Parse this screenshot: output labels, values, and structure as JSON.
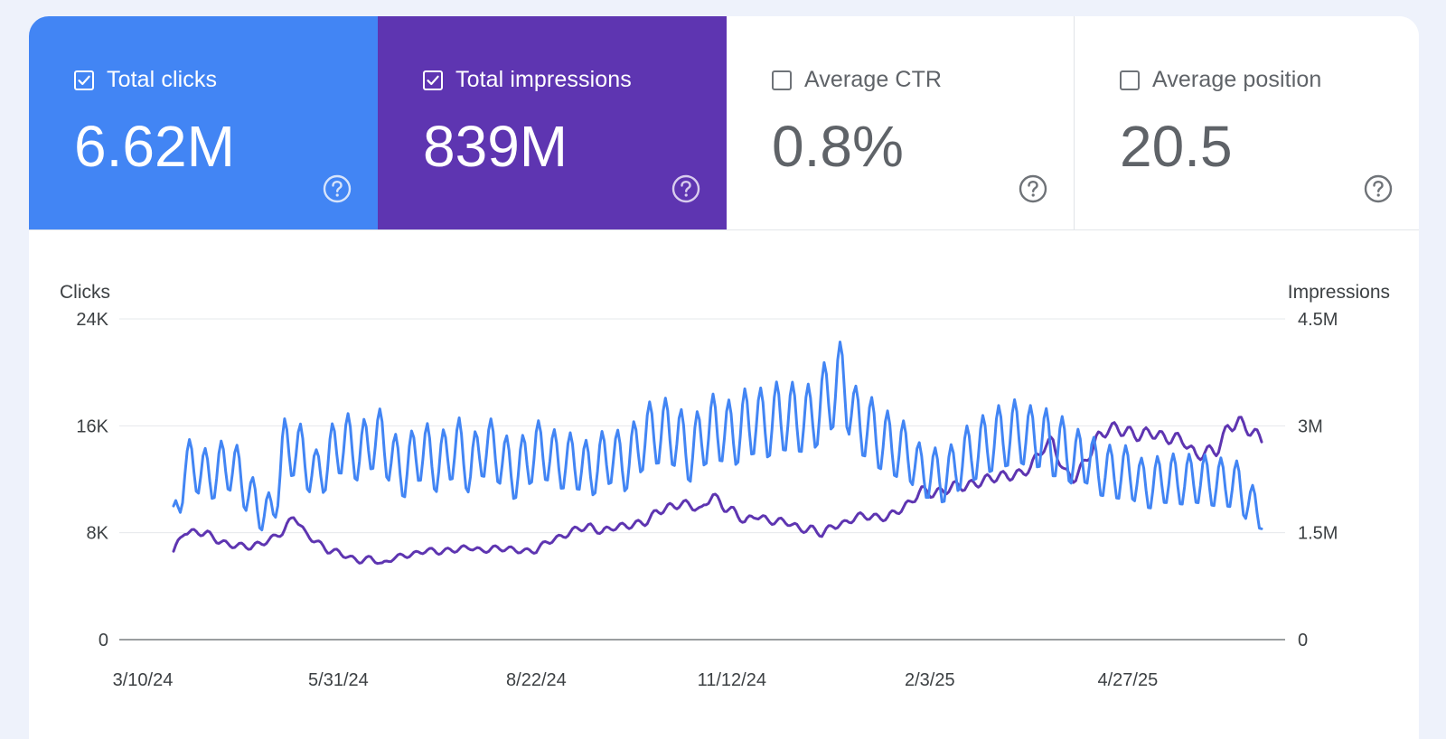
{
  "metrics": [
    {
      "label": "Total clicks",
      "value": "6.62M",
      "checked": true
    },
    {
      "label": "Total impressions",
      "value": "839M",
      "checked": true
    },
    {
      "label": "Average CTR",
      "value": "0.8%",
      "checked": false
    },
    {
      "label": "Average position",
      "value": "20.5",
      "checked": false
    }
  ],
  "colors": {
    "clicks": "#4285f4",
    "impressions": "#5e35b1"
  },
  "chart_data": {
    "type": "line",
    "title": "",
    "ylabel_left": "Clicks",
    "ylabel_right": "Impressions",
    "y_left_ticks": [
      "24K",
      "16K",
      "8K",
      "0"
    ],
    "y_right_ticks": [
      "4.5M",
      "3M",
      "1.5M",
      "0"
    ],
    "ylim_left": [
      0,
      24000
    ],
    "ylim_right": [
      0,
      4500000
    ],
    "x_tick_labels": [
      "3/10/24",
      "5/31/24",
      "8/22/24",
      "11/12/24",
      "2/3/25",
      "4/27/25"
    ],
    "x_range_days": [
      0,
      479
    ],
    "x_tick_days": [
      0,
      82,
      165,
      247,
      330,
      413
    ],
    "series": [
      {
        "name": "Clicks",
        "axis": "left",
        "values": [
          10000,
          14800,
          15200,
          14200,
          14600,
          15400,
          14300,
          12400,
          11200,
          10900,
          16500,
          16800,
          15600,
          14200,
          15500,
          17000,
          16900,
          16000,
          17500,
          17200,
          15600,
          14500,
          16200,
          16300,
          15000,
          16300,
          16600,
          14700,
          16700,
          16500,
          15700,
          14300,
          15600,
          16400,
          16300,
          15400,
          15500,
          15300,
          14600,
          15600,
          16100,
          15100,
          16500,
          17700,
          18000,
          18100,
          17500,
          16100,
          17600,
          18400,
          18200,
          17700,
          18800,
          19000,
          18600,
          19400,
          19300,
          19200,
          19100,
          20500,
          21700,
          22600,
          19000,
          18700,
          17600,
          17100,
          16500,
          16200,
          14500,
          14500,
          14000,
          14800,
          15900,
          16400,
          17000,
          17500,
          17800,
          18100,
          17500,
          17700,
          16700,
          16700,
          15600,
          16100,
          14800,
          14600,
          14400,
          14600,
          13600,
          13400,
          14000,
          13900,
          13800,
          14000,
          13800,
          13600,
          13600,
          13300,
          11600,
          11300
        ]
      },
      {
        "name": "Impressions",
        "axis": "right",
        "values": [
          1240000,
          1520000,
          1500000,
          1500000,
          1390000,
          1330000,
          1320000,
          1300000,
          1350000,
          1420000,
          1520000,
          1750000,
          1480000,
          1380000,
          1250000,
          1230000,
          1150000,
          1100000,
          1150000,
          1050000,
          1150000,
          1180000,
          1200000,
          1260000,
          1230000,
          1250000,
          1270000,
          1300000,
          1240000,
          1280000,
          1280000,
          1260000,
          1240000,
          1250000,
          1380000,
          1420000,
          1500000,
          1570000,
          1580000,
          1510000,
          1580000,
          1590000,
          1620000,
          1650000,
          1800000,
          1850000,
          1900000,
          1900000,
          1800000,
          2050000,
          1860000,
          1800000,
          1650000,
          1750000,
          1670000,
          1660000,
          1650000,
          1540000,
          1560000,
          1480000,
          1600000,
          1620000,
          1720000,
          1740000,
          1710000,
          1720000,
          1820000,
          1910000,
          2100000,
          2050000,
          2080000,
          2160000,
          2150000,
          2190000,
          2250000,
          2290000,
          2300000,
          2320000,
          2420000,
          2680000,
          2780000,
          2350000,
          2260000,
          2510000,
          2810000,
          2960000,
          2960000,
          2900000,
          2860000,
          2920000,
          2830000,
          2830000,
          2790000,
          2570000,
          2640000,
          2660000,
          3000000,
          3050000,
          2930000,
          2810000
        ]
      }
    ]
  }
}
